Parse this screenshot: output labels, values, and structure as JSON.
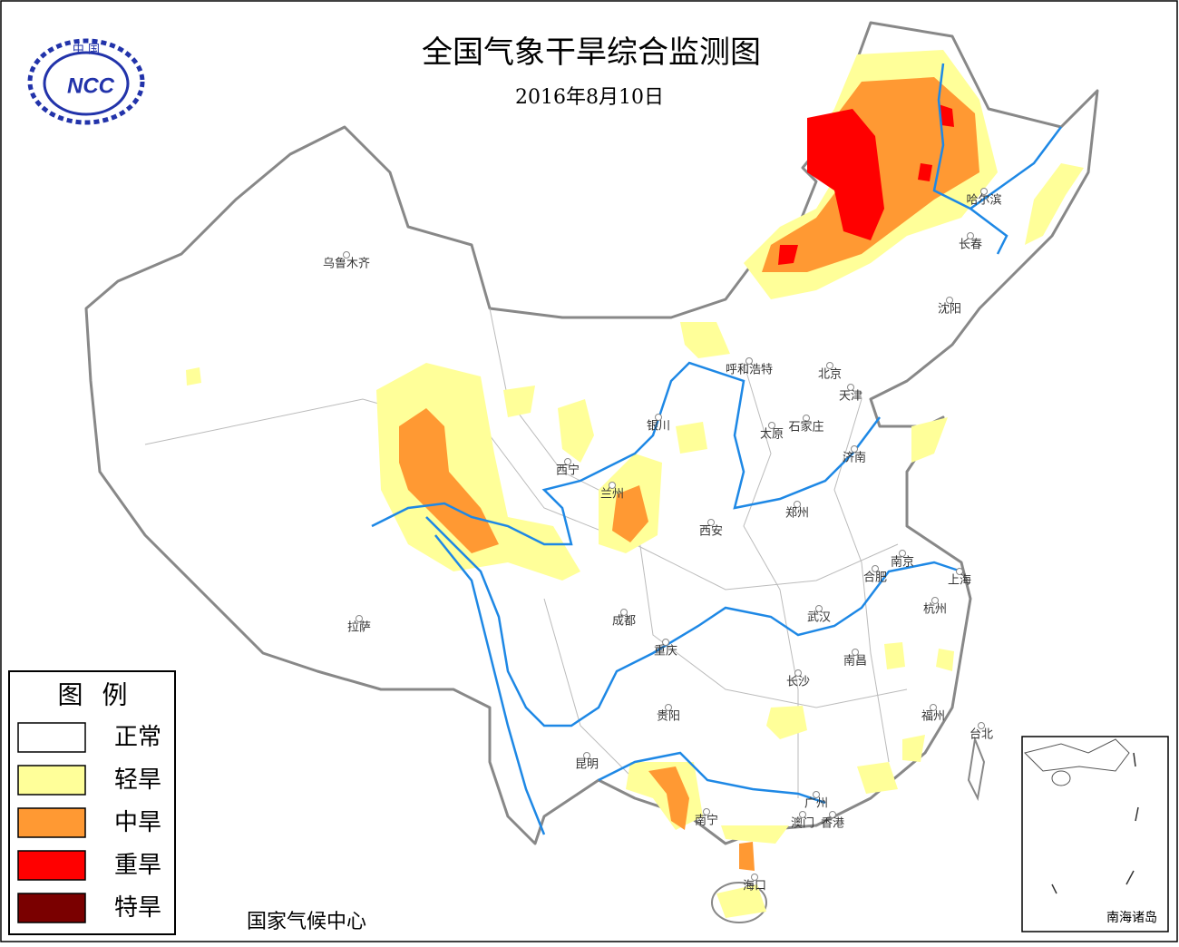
{
  "header": {
    "title": "全国气象干旱综合监测图",
    "date": "2016年8月10日"
  },
  "logo": {
    "top": "中 国",
    "text": "NCC"
  },
  "cities": [
    "乌鲁木齐",
    "呼和浩特",
    "哈尔滨",
    "长春",
    "沈阳",
    "北京",
    "天津",
    "石家庄",
    "太原",
    "银川",
    "西宁",
    "兰州",
    "济南",
    "郑州",
    "西安",
    "南京",
    "合肥",
    "上海",
    "拉萨",
    "成都",
    "武汉",
    "杭州",
    "重庆",
    "南昌",
    "长沙",
    "贵阳",
    "福州",
    "台北",
    "昆明",
    "南宁",
    "广州",
    "香港",
    "澳门",
    "海口"
  ],
  "legend": {
    "title": "图 例",
    "items": [
      {
        "label": "正常",
        "color": "#ffffff"
      },
      {
        "label": "轻旱",
        "color": "#ffff99"
      },
      {
        "label": "中旱",
        "color": "#ff9933"
      },
      {
        "label": "重旱",
        "color": "#ff0000"
      },
      {
        "label": "特旱",
        "color": "#7a0000"
      }
    ]
  },
  "footer": "国家气候中心",
  "inset_label": "南海诸岛"
}
